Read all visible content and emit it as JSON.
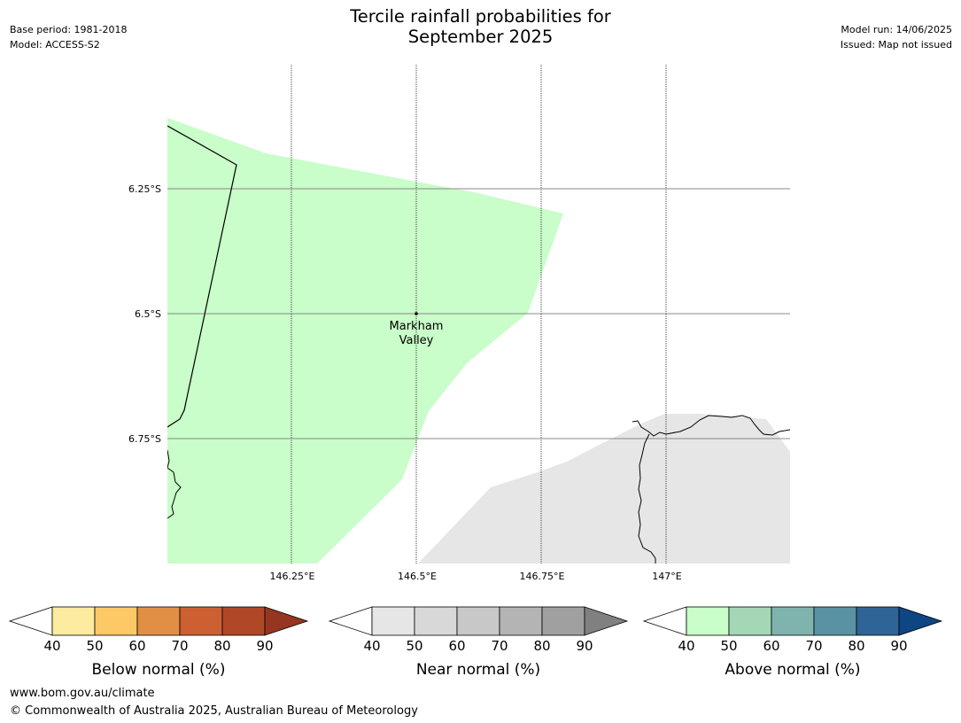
{
  "header": {
    "title_line1": "Tercile rainfall probabilities for",
    "title_line2": "September 2025",
    "base_period": "Base period: 1981-2018",
    "model": "Model: ACCESS-S2",
    "model_run": "Model run: 14/06/2025",
    "issued": "Issued: Map not issued"
  },
  "map": {
    "lat_labels": [
      "6.25°S",
      "6.5°S",
      "6.75°S"
    ],
    "lon_labels": [
      "146.25°E",
      "146.5°E",
      "146.75°E",
      "147°E"
    ],
    "place": {
      "name_line1": "Markham",
      "name_line2": "Valley"
    },
    "colors": {
      "above_normal_region": "#c9fdc9",
      "near_normal_region": "#e6e6e6",
      "gridline": "#888888",
      "coastline": "#000000"
    }
  },
  "colorbars": [
    {
      "label": "Below normal (%)",
      "ticks": [
        "40",
        "50",
        "60",
        "70",
        "80",
        "90"
      ],
      "colors": [
        "#fdeba0",
        "#fdc967",
        "#e18f45",
        "#cd6032",
        "#b04828"
      ],
      "over_color": "#963520"
    },
    {
      "label": "Near normal (%)",
      "ticks": [
        "40",
        "50",
        "60",
        "70",
        "80",
        "90"
      ],
      "colors": [
        "#e6e6e6",
        "#d8d8d8",
        "#c8c8c8",
        "#b4b4b4",
        "#a0a0a0"
      ],
      "over_color": "#808080"
    },
    {
      "label": "Above normal (%)",
      "ticks": [
        "40",
        "50",
        "60",
        "70",
        "80",
        "90"
      ],
      "colors": [
        "#c9fdc9",
        "#a3d7b6",
        "#7fb4ae",
        "#5992a2",
        "#2f6497"
      ],
      "over_color": "#0e4683"
    }
  ],
  "footer": {
    "url": "www.bom.gov.au/climate",
    "copyright": "© Commonwealth of Australia 2025, Australian Bureau of Meteorology"
  }
}
